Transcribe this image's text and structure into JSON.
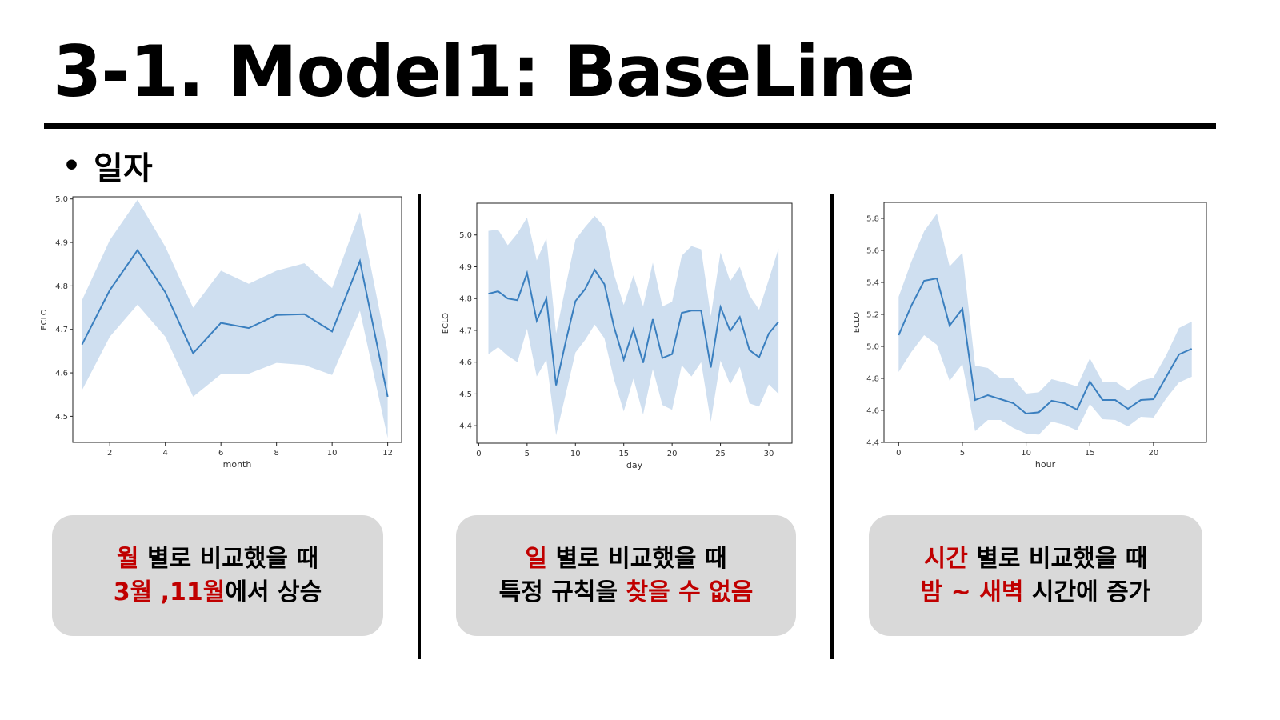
{
  "slide": {
    "title": "3-1. Model1: BaseLine",
    "bullet": "일자"
  },
  "colors": {
    "line": "#3a7fbf",
    "band": "#cfdff0",
    "accent_red": "#c00000",
    "note_bg": "#d9d9d9"
  },
  "notes": [
    {
      "line1_red": "월",
      "line1_rest": " 별로 비교했을 때",
      "line2_red": "3월 ,11월",
      "line2_rest": "에서 상승"
    },
    {
      "line1_red": "일",
      "line1_rest": " 별로 비교했을 때",
      "line2_pre": "특정 규칙을 ",
      "line2_red": "찾을 수 없음"
    },
    {
      "line1_red": "시간",
      "line1_rest": " 별로 비교했을 때",
      "line2_red": "밤 ~ 새벽",
      "line2_rest": " 시간에 증가"
    }
  ],
  "chart_data": [
    {
      "type": "line",
      "xlabel": "month",
      "ylabel": "ECLO",
      "xlim": [
        0.67,
        12.5
      ],
      "ylim": [
        4.44,
        5.005
      ],
      "xticks": [
        2,
        4,
        6,
        8,
        10,
        12
      ],
      "yticks": [
        4.5,
        4.6,
        4.7,
        4.8,
        4.9,
        5.0
      ],
      "ytick_labels": [
        "4.5",
        "4.6",
        "4.7",
        "4.8",
        "4.9",
        "5.0"
      ],
      "x": [
        1,
        2,
        3,
        4,
        5,
        6,
        7,
        8,
        9,
        10,
        11,
        12
      ],
      "y": [
        4.665,
        4.79,
        4.882,
        4.785,
        4.645,
        4.715,
        4.703,
        4.733,
        4.735,
        4.695,
        4.857,
        4.545
      ],
      "ci_low": [
        4.56,
        4.683,
        4.757,
        4.683,
        4.545,
        4.597,
        4.598,
        4.623,
        4.618,
        4.595,
        4.743,
        4.45
      ],
      "ci_high": [
        4.767,
        4.905,
        4.998,
        4.89,
        4.75,
        4.835,
        4.805,
        4.835,
        4.852,
        4.795,
        4.97,
        4.648
      ]
    },
    {
      "type": "line",
      "xlabel": "day",
      "ylabel": "ECLO",
      "xlim": [
        -0.2,
        32.4
      ],
      "ylim": [
        4.345,
        5.1
      ],
      "xticks": [
        0,
        5,
        10,
        15,
        20,
        25,
        30
      ],
      "yticks": [
        4.4,
        4.5,
        4.6,
        4.7,
        4.8,
        4.9,
        5.0
      ],
      "ytick_labels": [
        "4.4",
        "4.5",
        "4.6",
        "4.7",
        "4.8",
        "4.9",
        "5.0"
      ],
      "x": [
        1,
        2,
        3,
        4,
        5,
        6,
        7,
        8,
        9,
        10,
        11,
        12,
        13,
        14,
        15,
        16,
        17,
        18,
        19,
        20,
        21,
        22,
        23,
        24,
        25,
        26,
        27,
        28,
        29,
        30,
        31
      ],
      "y": [
        4.815,
        4.823,
        4.8,
        4.795,
        4.88,
        4.73,
        4.8,
        4.527,
        4.665,
        4.792,
        4.83,
        4.89,
        4.845,
        4.71,
        4.608,
        4.703,
        4.598,
        4.735,
        4.613,
        4.625,
        4.755,
        4.762,
        4.762,
        4.583,
        4.773,
        4.698,
        4.742,
        4.638,
        4.615,
        4.69,
        4.727
      ],
      "ci_low": [
        4.625,
        4.647,
        4.62,
        4.6,
        4.705,
        4.555,
        4.608,
        4.37,
        4.5,
        4.63,
        4.67,
        4.718,
        4.675,
        4.545,
        4.445,
        4.548,
        4.435,
        4.578,
        4.465,
        4.45,
        4.59,
        4.555,
        4.6,
        4.413,
        4.605,
        4.53,
        4.585,
        4.47,
        4.46,
        4.53,
        4.5
      ],
      "ci_high": [
        5.013,
        5.017,
        4.968,
        5.005,
        5.055,
        4.92,
        4.99,
        4.69,
        4.84,
        4.985,
        5.025,
        5.06,
        5.025,
        4.875,
        4.78,
        4.873,
        4.775,
        4.913,
        4.775,
        4.79,
        4.935,
        4.965,
        4.955,
        4.745,
        4.945,
        4.855,
        4.9,
        4.81,
        4.765,
        4.86,
        4.957
      ]
    },
    {
      "type": "line",
      "xlabel": "hour",
      "ylabel": "ECLO",
      "xlim": [
        -1.15,
        24.15
      ],
      "ylim": [
        4.4,
        5.9
      ],
      "xticks": [
        0,
        5,
        10,
        15,
        20
      ],
      "yticks": [
        4.4,
        4.6,
        4.8,
        5.0,
        5.2,
        5.4,
        5.6,
        5.8
      ],
      "ytick_labels": [
        "4.4",
        "4.6",
        "4.8",
        "5.0",
        "5.2",
        "5.4",
        "5.6",
        "5.8"
      ],
      "x": [
        0,
        1,
        2,
        3,
        4,
        5,
        6,
        7,
        8,
        9,
        10,
        11,
        12,
        13,
        14,
        15,
        16,
        17,
        18,
        19,
        20,
        21,
        22,
        23
      ],
      "y": [
        5.07,
        5.255,
        5.41,
        5.425,
        5.13,
        5.235,
        4.665,
        4.695,
        4.67,
        4.645,
        4.58,
        4.588,
        4.66,
        4.645,
        4.605,
        4.78,
        4.665,
        4.665,
        4.61,
        4.665,
        4.67,
        4.81,
        4.95,
        4.985
      ],
      "ci_low": [
        4.84,
        4.965,
        5.07,
        5.01,
        4.785,
        4.89,
        4.47,
        4.54,
        4.54,
        4.49,
        4.455,
        4.448,
        4.53,
        4.51,
        4.475,
        4.64,
        4.545,
        4.54,
        4.5,
        4.56,
        4.555,
        4.675,
        4.775,
        4.81
      ],
      "ci_high": [
        5.31,
        5.53,
        5.72,
        5.83,
        5.5,
        5.585,
        4.88,
        4.865,
        4.8,
        4.8,
        4.705,
        4.713,
        4.795,
        4.775,
        4.75,
        4.925,
        4.78,
        4.78,
        4.725,
        4.785,
        4.805,
        4.945,
        5.115,
        5.155
      ]
    }
  ]
}
